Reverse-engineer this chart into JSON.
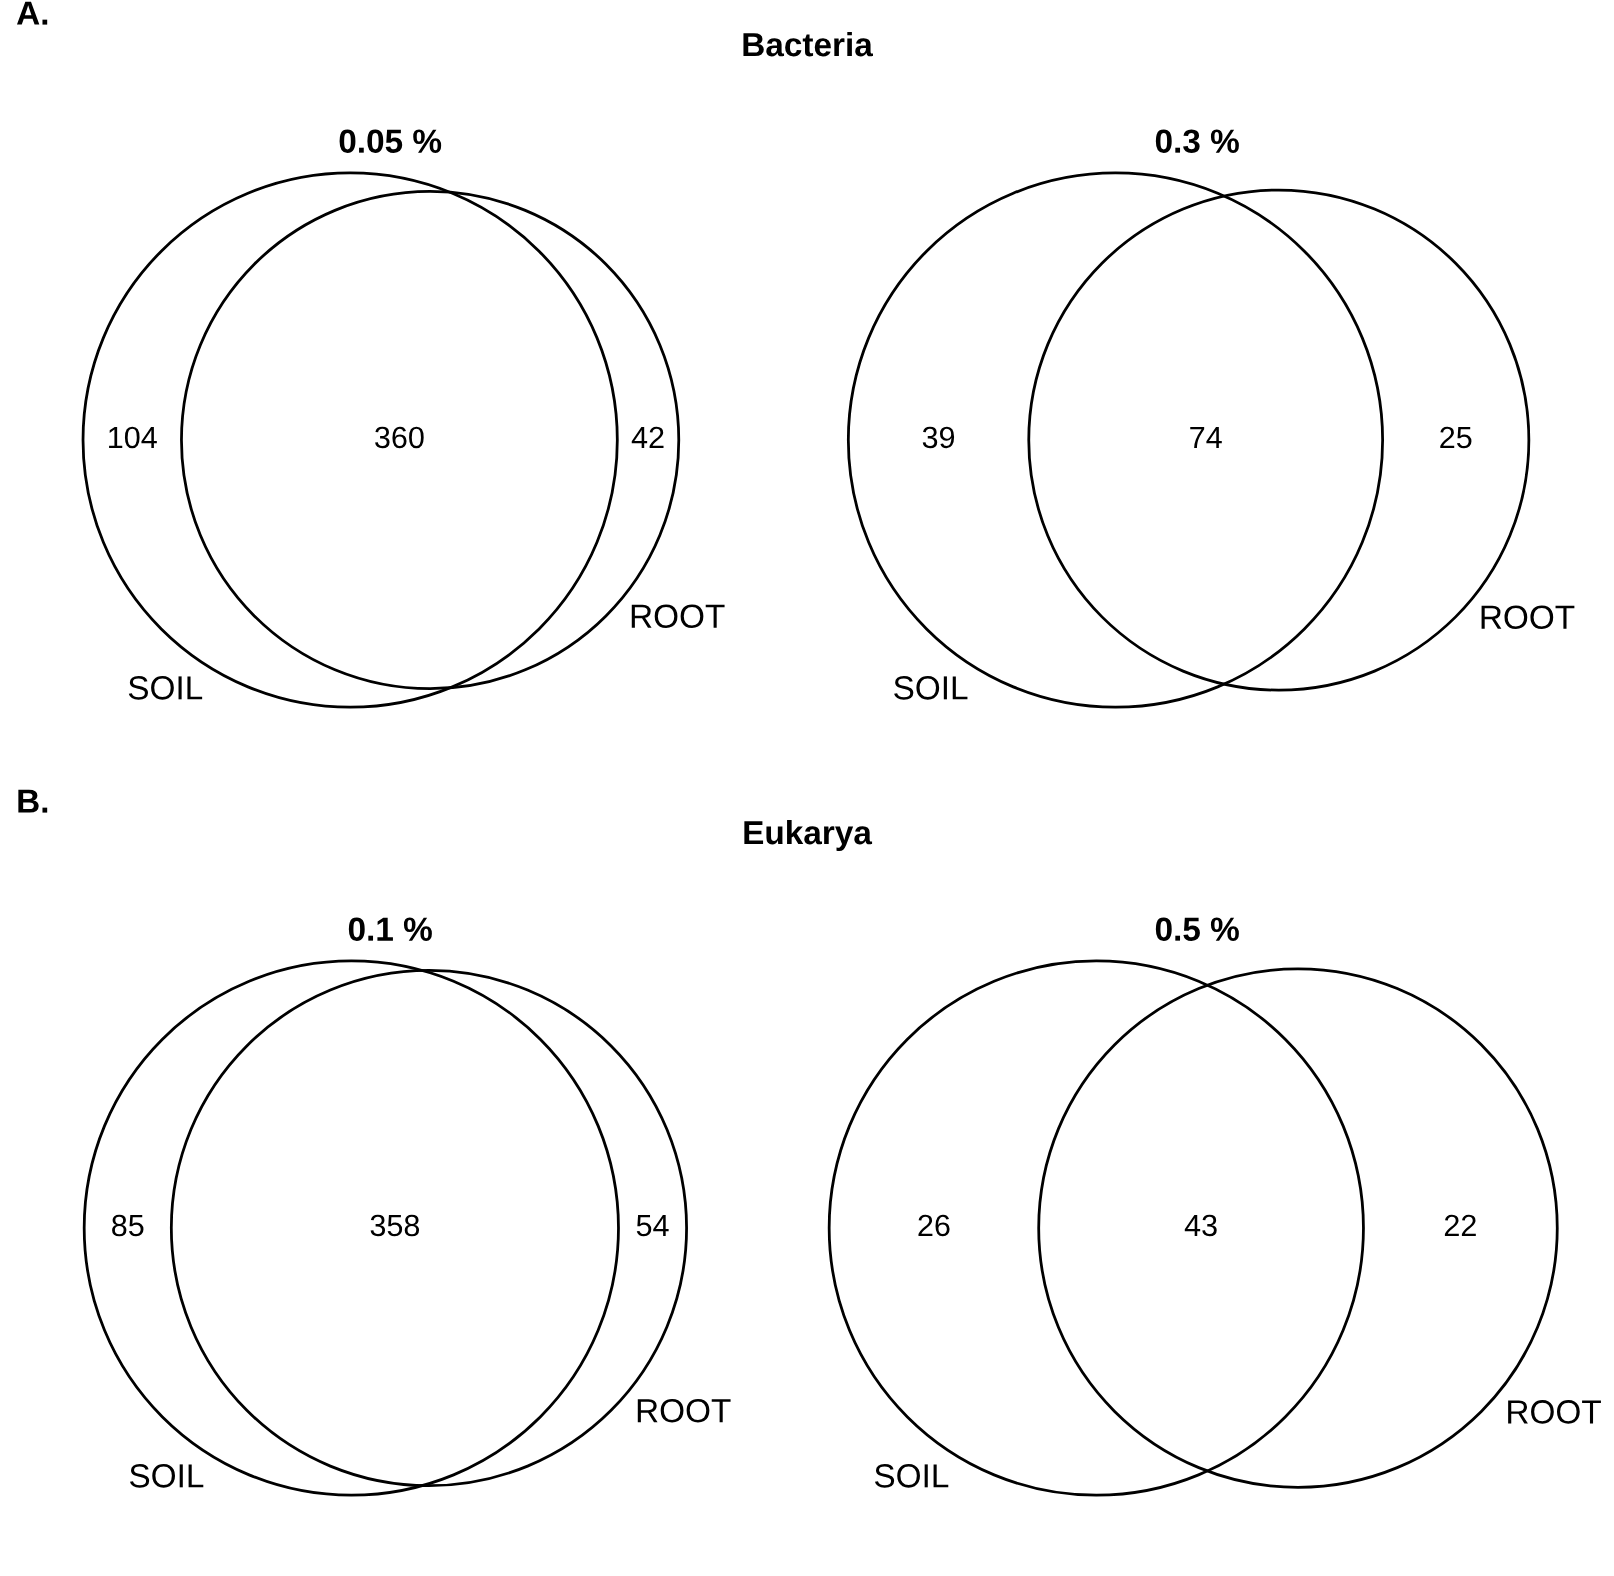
{
  "chart_data": [
    {
      "type": "other",
      "title": "0.05 %",
      "annotations": [
        "A.",
        "Bacteria"
      ],
      "categories": [
        "SOIL",
        null,
        "ROOT"
      ],
      "values": [
        104,
        360,
        42
      ],
      "data_labels": true
    },
    {
      "type": "other",
      "title": "0.3 %",
      "categories": [
        "SOIL",
        null,
        "ROOT"
      ],
      "values": [
        39,
        74,
        25
      ],
      "data_labels": true
    },
    {
      "type": "other",
      "title": "0.1 %",
      "annotations": [
        "B.",
        "Eukarya"
      ],
      "categories": [
        "SOIL",
        null,
        "ROOT"
      ],
      "values": [
        85,
        358,
        54
      ],
      "data_labels": true
    },
    {
      "type": "other",
      "title": "0.5 %",
      "categories": [
        "SOIL",
        null,
        "ROOT"
      ],
      "values": [
        26,
        43,
        22
      ],
      "data_labels": true
    }
  ]
}
